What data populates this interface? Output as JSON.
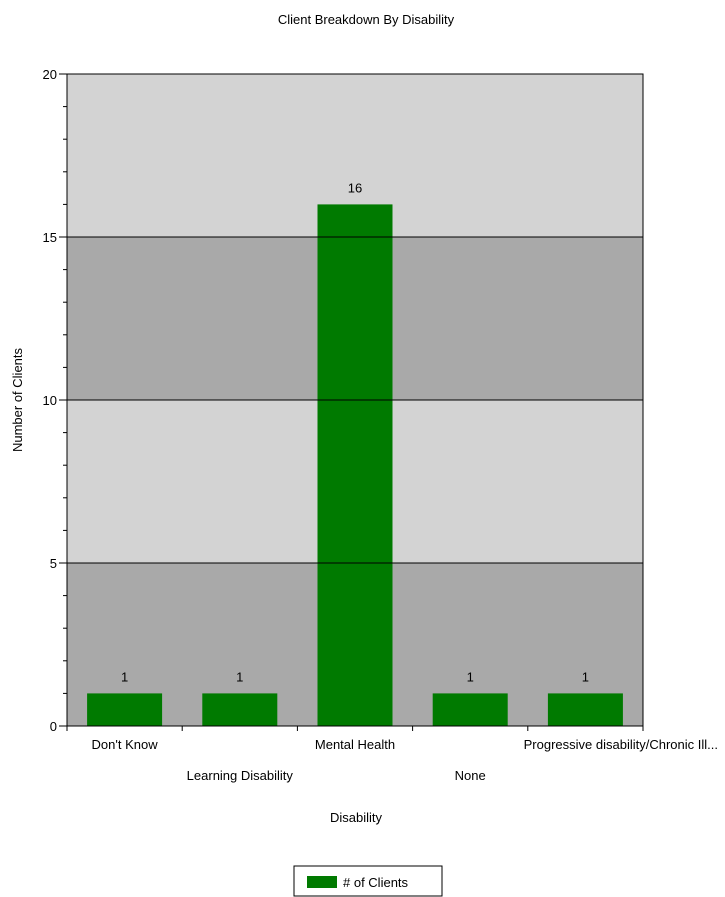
{
  "chart_data": {
    "type": "bar",
    "title": "Client Breakdown By Disability",
    "xlabel": "Disability",
    "ylabel": "Number of Clients",
    "categories": [
      "Don't Know",
      "Learning Disability",
      "Mental Health",
      "None",
      "Progressive  disability/Chronic Ill..."
    ],
    "series": [
      {
        "name": "# of Clients",
        "values": [
          1,
          1,
          16,
          1,
          1
        ],
        "color": "#007a00"
      }
    ],
    "data_labels": [
      "1",
      "1",
      "16",
      "1",
      "1"
    ],
    "ylim": [
      0,
      20
    ],
    "yticks": [
      0,
      5,
      10,
      15,
      20
    ],
    "ytick_labels": [
      "0",
      "5",
      "10",
      "15",
      "20"
    ],
    "grid": true,
    "band_colors": [
      "#a9a9a9",
      "#d3d3d3"
    ],
    "legend_position": "bottom-center"
  }
}
